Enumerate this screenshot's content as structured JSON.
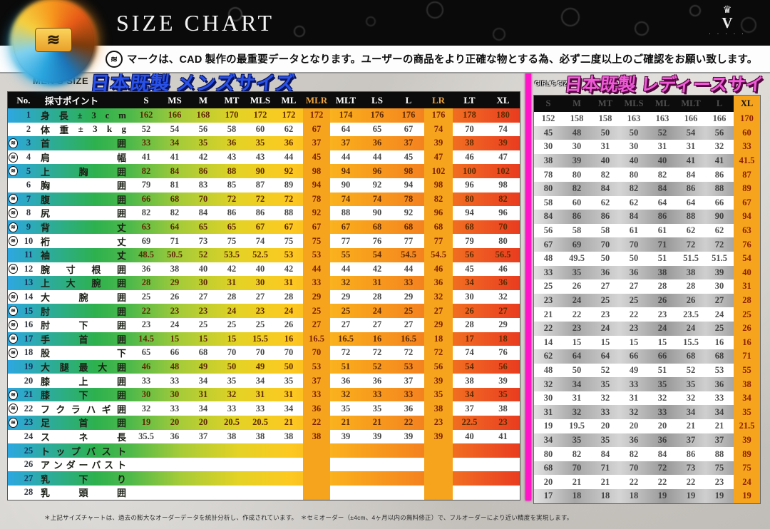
{
  "page": {
    "title": "SIZE CHART",
    "note": "マークは、CAD 製作の最重要データとなります。ユーザーの商品をより正確な物とする為、必ず二度以上のご確認をお願い致します。",
    "footer": "＊上記サイズチャートは、過去の膨大なオーダーデータを統計分析し、作成されています。　＊セミオーダー（±4cm、4ヶ月以内の無料修正）で、フルオーダーにより近い精度を実現します。"
  },
  "icons": {
    "wave_mark": "≋",
    "crown": "♛",
    "brand_letter": "V",
    "brand_dots": "· · · · ·"
  },
  "colors": {
    "mens_title_blue": "#2a52e8",
    "ladies_title_pink": "#ef5ad8",
    "divider_magenta": "#ff14c8",
    "band_amber": "#f6a41e",
    "header_black": "#0c0c0c"
  },
  "mens": {
    "section_label": "MEN'S SIZE",
    "section_title": "日本既製 メンズサイズ",
    "col_no": "No.",
    "col_point": "採寸ポイント",
    "sizes": [
      "S",
      "MS",
      "M",
      "MT",
      "MLS",
      "ML",
      "MLR",
      "MLT",
      "LS",
      "L",
      "LR",
      "LT",
      "XL"
    ],
    "highlight_cols": [
      6,
      10
    ],
    "rows": [
      {
        "no": 1,
        "label": "身長±3cm",
        "mark": false,
        "values": [
          162,
          166,
          168,
          170,
          172,
          172,
          172,
          174,
          176,
          176,
          176,
          178,
          180
        ]
      },
      {
        "no": 2,
        "label": "体重±3kg",
        "mark": false,
        "values": [
          52,
          54,
          56,
          58,
          60,
          62,
          67,
          64,
          65,
          67,
          74,
          70,
          74
        ]
      },
      {
        "no": 3,
        "label": "首囲",
        "mark": true,
        "values": [
          33,
          34,
          35,
          36,
          35,
          36,
          37,
          37,
          36,
          37,
          39,
          38,
          39
        ]
      },
      {
        "no": 4,
        "label": "肩幅",
        "mark": true,
        "values": [
          41,
          41,
          42,
          43,
          43,
          44,
          45,
          44,
          44,
          45,
          47,
          46,
          47
        ]
      },
      {
        "no": 5,
        "label": "上胸囲",
        "mark": true,
        "values": [
          82,
          84,
          86,
          88,
          90,
          92,
          98,
          94,
          96,
          98,
          102,
          100,
          102
        ]
      },
      {
        "no": 6,
        "label": "胸囲",
        "mark": false,
        "values": [
          79,
          81,
          83,
          85,
          87,
          89,
          94,
          90,
          92,
          94,
          98,
          96,
          98
        ]
      },
      {
        "no": 7,
        "label": "腹囲",
        "mark": true,
        "values": [
          66,
          68,
          70,
          72,
          72,
          72,
          78,
          74,
          74,
          78,
          82,
          80,
          82
        ]
      },
      {
        "no": 8,
        "label": "尻囲",
        "mark": true,
        "values": [
          82,
          82,
          84,
          86,
          86,
          88,
          92,
          88,
          90,
          92,
          96,
          94,
          96
        ]
      },
      {
        "no": 9,
        "label": "背丈",
        "mark": true,
        "values": [
          63,
          64,
          65,
          65,
          67,
          67,
          67,
          67,
          68,
          68,
          68,
          68,
          70
        ]
      },
      {
        "no": 10,
        "label": "裄丈",
        "mark": true,
        "values": [
          69,
          71,
          73,
          75,
          74,
          75,
          75,
          77,
          76,
          77,
          77,
          79,
          80
        ]
      },
      {
        "no": 11,
        "label": "袖丈",
        "mark": false,
        "values": [
          48.5,
          50.5,
          52,
          53.5,
          52.5,
          53,
          53,
          55,
          54,
          54.5,
          54.5,
          56,
          56.5
        ]
      },
      {
        "no": 12,
        "label": "腕寸根囲",
        "mark": true,
        "values": [
          36,
          38,
          40,
          42,
          40,
          42,
          44,
          44,
          42,
          44,
          46,
          45,
          46
        ]
      },
      {
        "no": 13,
        "label": "上大腕囲",
        "mark": false,
        "values": [
          28,
          29,
          30,
          31,
          30,
          31,
          33,
          32,
          31,
          33,
          36,
          34,
          36
        ]
      },
      {
        "no": 14,
        "label": "大腕囲",
        "mark": true,
        "values": [
          25,
          26,
          27,
          28,
          27,
          28,
          29,
          29,
          28,
          29,
          32,
          30,
          32
        ]
      },
      {
        "no": 15,
        "label": "肘囲",
        "mark": true,
        "values": [
          22,
          23,
          23,
          24,
          23,
          24,
          25,
          25,
          24,
          25,
          27,
          26,
          27
        ]
      },
      {
        "no": 16,
        "label": "肘下囲",
        "mark": true,
        "values": [
          23,
          24,
          25,
          25,
          25,
          26,
          27,
          27,
          27,
          27,
          29,
          28,
          29
        ]
      },
      {
        "no": 17,
        "label": "手首囲",
        "mark": true,
        "values": [
          14.5,
          15,
          15,
          15,
          15.5,
          16,
          16.5,
          16.5,
          16,
          16.5,
          18,
          17,
          18
        ]
      },
      {
        "no": 18,
        "label": "股下",
        "mark": true,
        "values": [
          65,
          66,
          68,
          70,
          70,
          70,
          70,
          72,
          72,
          72,
          72,
          74,
          76
        ]
      },
      {
        "no": 19,
        "label": "大腿最大囲",
        "mark": false,
        "values": [
          46,
          48,
          49,
          50,
          49,
          50,
          53,
          51,
          52,
          53,
          56,
          54,
          56
        ]
      },
      {
        "no": 20,
        "label": "膝上囲",
        "mark": false,
        "values": [
          33,
          33,
          34,
          35,
          34,
          35,
          37,
          36,
          36,
          37,
          39,
          38,
          39
        ]
      },
      {
        "no": 21,
        "label": "膝下囲",
        "mark": true,
        "values": [
          30,
          30,
          31,
          32,
          31,
          31,
          33,
          32,
          33,
          33,
          35,
          34,
          35
        ]
      },
      {
        "no": 22,
        "label": "フクラハギ囲",
        "mark": true,
        "values": [
          32,
          33,
          34,
          33,
          33,
          34,
          36,
          35,
          35,
          36,
          38,
          37,
          38
        ]
      },
      {
        "no": 23,
        "label": "足首囲",
        "mark": true,
        "values": [
          19,
          20,
          20,
          20.5,
          20.5,
          21,
          22,
          21,
          21,
          22,
          23,
          22.5,
          23
        ]
      },
      {
        "no": 24,
        "label": "スネ長",
        "mark": false,
        "values": [
          35.5,
          36,
          37,
          38,
          38,
          38,
          38,
          39,
          39,
          39,
          39,
          40,
          41
        ]
      },
      {
        "no": 25,
        "label": "トップバスト",
        "mark": false,
        "values": [
          "",
          "",
          "",
          "",
          "",
          "",
          "",
          "",
          "",
          "",
          "",
          "",
          ""
        ]
      },
      {
        "no": 26,
        "label": "アンダーバスト",
        "mark": false,
        "values": [
          "",
          "",
          "",
          "",
          "",
          "",
          "",
          "",
          "",
          "",
          "",
          "",
          ""
        ]
      },
      {
        "no": 27,
        "label": "乳下り",
        "mark": false,
        "values": [
          "",
          "",
          "",
          "",
          "",
          "",
          "",
          "",
          "",
          "",
          "",
          "",
          ""
        ]
      },
      {
        "no": 28,
        "label": "乳頭囲",
        "mark": false,
        "values": [
          "",
          "",
          "",
          "",
          "",
          "",
          "",
          "",
          "",
          "",
          "",
          "",
          ""
        ]
      }
    ]
  },
  "ladies": {
    "section_label": "GIRL'S SIZE",
    "section_title": "日本既製 レディースサイズ",
    "sizes": [
      "S",
      "M",
      "MT",
      "MLS",
      "ML",
      "MLT",
      "L",
      "XL"
    ],
    "highlight_col": 7,
    "rows": [
      [
        152,
        158,
        158,
        163,
        163,
        166,
        166,
        170
      ],
      [
        45,
        48,
        50,
        50,
        52,
        54,
        56,
        60
      ],
      [
        30,
        30,
        31,
        30,
        31,
        31,
        32,
        33
      ],
      [
        38,
        39,
        40,
        40,
        40,
        41,
        41,
        41.5
      ],
      [
        78,
        80,
        82,
        80,
        82,
        84,
        86,
        87
      ],
      [
        80,
        82,
        84,
        82,
        84,
        86,
        88,
        89
      ],
      [
        58,
        60,
        62,
        62,
        64,
        64,
        66,
        67
      ],
      [
        84,
        86,
        86,
        84,
        86,
        88,
        90,
        94
      ],
      [
        56,
        58,
        58,
        61,
        61,
        62,
        62,
        63
      ],
      [
        67,
        69,
        70,
        70,
        71,
        72,
        72,
        76
      ],
      [
        48,
        49.5,
        50,
        50,
        51,
        51.5,
        51.5,
        54
      ],
      [
        33,
        35,
        36,
        36,
        38,
        38,
        39,
        40
      ],
      [
        25,
        26,
        27,
        27,
        28,
        28,
        30,
        31
      ],
      [
        23,
        24,
        25,
        25,
        26,
        26,
        27,
        28
      ],
      [
        21,
        22,
        23,
        22,
        23,
        23.5,
        24,
        25
      ],
      [
        22,
        23,
        24,
        23,
        24,
        24,
        25,
        26
      ],
      [
        14,
        15,
        15,
        15,
        15,
        15.5,
        16,
        16
      ],
      [
        62,
        64,
        64,
        66,
        66,
        68,
        68,
        71
      ],
      [
        48,
        50,
        52,
        49,
        51,
        52,
        53,
        55
      ],
      [
        32,
        34,
        35,
        33,
        35,
        35,
        36,
        38
      ],
      [
        30,
        31,
        32,
        31,
        32,
        32,
        33,
        34
      ],
      [
        31,
        32,
        33,
        32,
        33,
        34,
        34,
        35
      ],
      [
        19,
        19.5,
        20,
        20,
        20,
        21,
        21,
        21.5
      ],
      [
        34,
        35,
        35,
        36,
        36,
        37,
        37,
        39
      ],
      [
        80,
        82,
        84,
        82,
        84,
        86,
        88,
        89
      ],
      [
        68,
        70,
        71,
        70,
        72,
        73,
        75,
        75
      ],
      [
        20,
        21,
        21,
        22,
        22,
        22,
        23,
        24
      ],
      [
        17,
        18,
        18,
        18,
        19,
        19,
        19,
        19
      ]
    ]
  }
}
